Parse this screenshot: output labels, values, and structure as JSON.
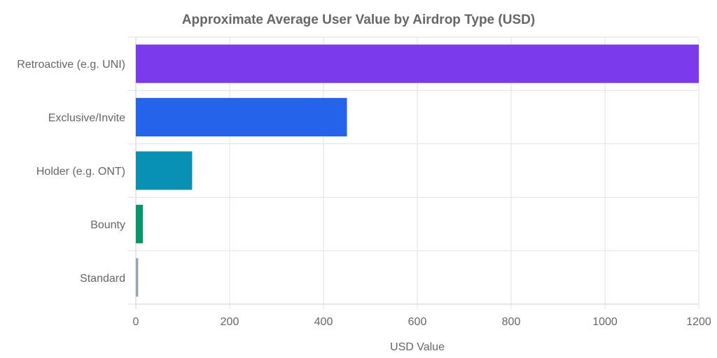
{
  "chart_data": {
    "type": "bar",
    "orientation": "horizontal",
    "title": "Approximate Average User Value by Airdrop Type (USD)",
    "xlabel": "USD Value",
    "ylabel": "",
    "categories": [
      "Retroactive (e.g. UNI)",
      "Exclusive/Invite",
      "Holder (e.g. ONT)",
      "Bounty",
      "Standard"
    ],
    "values": [
      1200,
      450,
      120,
      15,
      5
    ],
    "colors": [
      "#7c3aed",
      "#2563eb",
      "#0891b2",
      "#059669",
      "#94a3b8"
    ],
    "xlim": [
      0,
      1200
    ],
    "xticks": [
      "0",
      "200",
      "400",
      "600",
      "800",
      "1000",
      "1200"
    ],
    "grid": true,
    "legend": "none"
  }
}
